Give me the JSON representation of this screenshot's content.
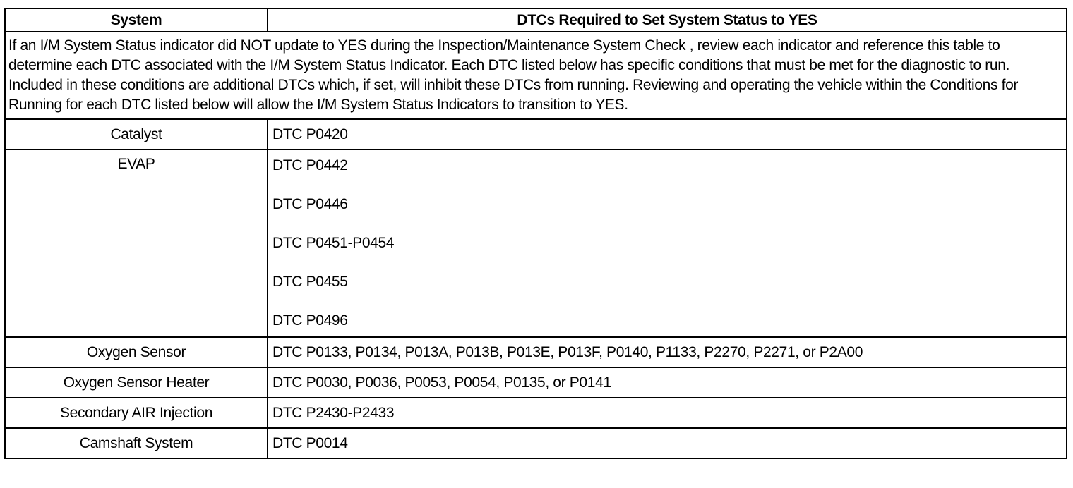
{
  "header": {
    "system": "System",
    "dtcs": "DTCs Required to Set System Status to YES"
  },
  "intro": "If an I/M System Status indicator did NOT update to YES during the Inspection/Maintenance System Check , review each indicator and reference this table to determine each DTC associated with the I/M System Status Indicator. Each DTC listed below has specific conditions that must be met for the diagnostic to run. Included in these conditions are additional DTCs which, if set, will inhibit these DTCs from running. Reviewing and operating the vehicle within the Conditions for Running for each DTC listed below will allow the I/M System Status Indicators to transition to YES.",
  "rows": [
    {
      "system": "Catalyst",
      "dtcs": [
        "DTC P0420"
      ]
    },
    {
      "system": "EVAP",
      "dtcs": [
        "DTC P0442",
        "DTC P0446",
        "DTC P0451-P0454",
        "DTC P0455",
        "DTC P0496"
      ]
    },
    {
      "system": "Oxygen Sensor",
      "dtcs": [
        "DTC P0133, P0134, P013A, P013B, P013E, P013F, P0140, P1133, P2270, P2271, or P2A00"
      ]
    },
    {
      "system": "Oxygen Sensor Heater",
      "dtcs": [
        "DTC P0030, P0036, P0053, P0054, P0135, or P0141"
      ]
    },
    {
      "system": "Secondary AIR Injection",
      "dtcs": [
        "DTC P2430-P2433"
      ]
    },
    {
      "system": "Camshaft System",
      "dtcs": [
        "DTC P0014"
      ]
    }
  ]
}
